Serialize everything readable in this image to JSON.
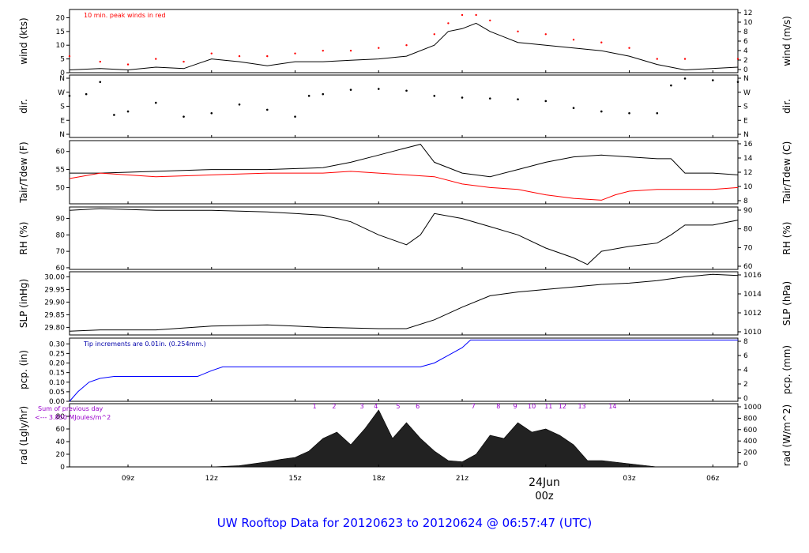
{
  "chart_data": {
    "type": "line",
    "title": "UW Rooftop Data for 20120623  to  20120624 @ 06:57:47  (UTC)",
    "x_axis": {
      "ticks": [
        "09z",
        "12z",
        "15z",
        "18z",
        "21z",
        "00z",
        "03z",
        "06z"
      ],
      "date_label": "24Jun",
      "date_tick": "00z"
    },
    "panels": [
      {
        "id": "wind",
        "ylabel_left": "wind (kts)",
        "ylabel_right": "wind (m/s)",
        "ylim": [
          0,
          23
        ],
        "left_ticks": [
          0,
          5,
          10,
          15,
          20
        ],
        "right_ticks": [
          0,
          2,
          4,
          6,
          8,
          10,
          12
        ],
        "note": "10 min. peak winds in red",
        "series": [
          {
            "x": [
              6.9,
              8,
              9,
              10,
              11,
              12,
              13,
              14,
              15,
              16,
              17,
              18,
              19,
              20,
              20.5,
              21,
              21.5,
              22,
              23,
              24,
              25,
              26,
              27,
              28,
              29,
              30.9
            ],
            "y": [
              1,
              1.5,
              1,
              2,
              1.5,
              5,
              4,
              2.5,
              4,
              4,
              4.5,
              5,
              6,
              10,
              15,
              16,
              18,
              15,
              11,
              10,
              9,
              8,
              6,
              3,
              1,
              2
            ]
          },
          {
            "x": [
              6.9,
              8,
              9,
              10,
              11,
              12,
              13,
              14,
              15,
              16,
              17,
              18,
              19,
              20,
              20.5,
              21,
              21.5,
              22,
              23,
              24,
              25,
              26,
              27,
              28,
              29,
              30.9
            ],
            "y": [
              6,
              4,
              3,
              5,
              4,
              7,
              6,
              6,
              7,
              8,
              8,
              9,
              10,
              14,
              18,
              21,
              21,
              19,
              15,
              14,
              12,
              11,
              9,
              5,
              5,
              5
            ]
          }
        ]
      },
      {
        "id": "dir",
        "ylabel_left": "dir.",
        "ylabel_right": "dir.",
        "ylim": [
          0,
          360
        ],
        "left_ticks": [
          "N",
          "E",
          "S",
          "W",
          "N"
        ],
        "right_ticks": [
          "N",
          "E",
          "S",
          "W",
          "N"
        ],
        "series": [
          {
            "x": [
              6.9,
              7.5,
              8,
              8.5,
              9,
              10,
              11,
              12,
              13,
              14,
              15,
              15.5,
              16,
              17,
              18,
              19,
              20,
              21,
              22,
              23,
              24,
              25,
              26,
              27,
              28,
              28.5,
              29,
              30,
              30.9
            ],
            "y": [
              240,
              250,
              320,
              130,
              150,
              200,
              120,
              140,
              190,
              160,
              120,
              240,
              250,
              275,
              280,
              270,
              240,
              230,
              225,
              220,
              210,
              170,
              150,
              140,
              140,
              300,
              340,
              330,
              320
            ]
          }
        ]
      },
      {
        "id": "temp",
        "ylabel_left": "Tair/Tdew (F)",
        "ylabel_right": "Tair/Tdew (C)",
        "ylim": [
          45.5,
          63
        ],
        "left_ticks": [
          50,
          55,
          60
        ],
        "right_ticks": [
          8,
          10,
          12,
          14,
          16
        ],
        "series": [
          {
            "name": "Tair",
            "x": [
              6.9,
              8,
              10,
              12,
              14,
              16,
              17,
              18,
              19,
              19.5,
              20,
              21,
              22,
              23,
              24,
              25,
              26,
              27,
              28,
              28.5,
              29,
              30,
              30.9
            ],
            "y": [
              54,
              54,
              54.5,
              55,
              55,
              55.5,
              57,
              59,
              61,
              62,
              57,
              54,
              53,
              55,
              57,
              58.5,
              59,
              58.5,
              58,
              58,
              54,
              54,
              53.5
            ]
          },
          {
            "name": "Tdew",
            "x": [
              6.9,
              8,
              10,
              12,
              14,
              16,
              17,
              18,
              19,
              20,
              21,
              22,
              23,
              24,
              25,
              26,
              26.5,
              27,
              28,
              29,
              30,
              30.9
            ],
            "y": [
              52.5,
              54,
              53,
              53.5,
              54,
              54,
              54.5,
              54,
              53.5,
              53,
              51,
              50,
              49.5,
              48,
              47,
              46.5,
              48,
              49,
              49.5,
              49.5,
              49.5,
              50
            ]
          }
        ]
      },
      {
        "id": "rh",
        "ylabel_left": "RH (%)",
        "ylabel_right": "RH (%)",
        "ylim": [
          59,
          97
        ],
        "left_ticks": [
          60,
          70,
          80,
          90
        ],
        "right_ticks": [
          60,
          70,
          80,
          90
        ],
        "series": [
          {
            "x": [
              6.9,
              8,
              10,
              12,
              14,
              16,
              17,
              18,
              19,
              19.5,
              20,
              21,
              22,
              23,
              24,
              25,
              25.5,
              26,
              27,
              28,
              28.5,
              29,
              30,
              30.9
            ],
            "y": [
              95,
              96,
              95,
              95,
              94,
              92,
              88,
              80,
              74,
              80,
              93,
              90,
              85,
              80,
              72,
              66,
              62,
              70,
              73,
              75,
              80,
              86,
              86,
              89
            ]
          }
        ]
      },
      {
        "id": "slp",
        "ylabel_left": "SLP (inHg)",
        "ylabel_right": "SLP (hPa)",
        "ylim": [
          29.77,
          30.02
        ],
        "left_ticks": [
          29.8,
          29.85,
          29.9,
          29.95,
          30.0
        ],
        "right_ticks": [
          1010,
          1012,
          1014,
          1016
        ],
        "series": [
          {
            "x": [
              6.9,
              8,
              10,
              12,
              14,
              16,
              18,
              19,
              20,
              21,
              22,
              23,
              24,
              25,
              26,
              27,
              28,
              29,
              30,
              30.9
            ],
            "y": [
              29.785,
              29.79,
              29.79,
              29.805,
              29.81,
              29.8,
              29.795,
              29.795,
              29.83,
              29.88,
              29.925,
              29.94,
              29.95,
              29.96,
              29.97,
              29.975,
              29.985,
              30.0,
              30.01,
              30.005
            ]
          }
        ]
      },
      {
        "id": "pcp",
        "ylabel_left": "pcp. (in)",
        "ylabel_right": "pcp. (mm)",
        "ylim": [
          0,
          0.33
        ],
        "left_ticks": [
          0.0,
          0.05,
          0.1,
          0.15,
          0.2,
          0.25,
          0.3
        ],
        "right_ticks": [
          0,
          2,
          4,
          6,
          8
        ],
        "note": "Tip increments are 0.01in. (0.254mm.)",
        "series": [
          {
            "x": [
              6.9,
              7.2,
              7.6,
              8,
              8.5,
              11.5,
              12,
              12.4,
              19.5,
              20,
              20.5,
              21,
              21.3,
              30.9
            ],
            "y": [
              0,
              0.05,
              0.1,
              0.12,
              0.13,
              0.13,
              0.16,
              0.18,
              0.18,
              0.2,
              0.24,
              0.28,
              0.32,
              0.32
            ]
          }
        ]
      },
      {
        "id": "rad",
        "ylabel_left": "rad (Lgly/hr)",
        "ylabel_right": "rad (W/m^2)",
        "ylim": [
          0,
          100
        ],
        "left_ticks": [
          0,
          20,
          40,
          60,
          80
        ],
        "right_ticks": [
          0,
          200,
          400,
          600,
          800,
          1000
        ],
        "note_1": "Sum of previous day",
        "note_2": "<--- 3.850 MJoules/m^2",
        "markers": [
          "1",
          "2",
          "3",
          "4",
          "5",
          "6",
          "7",
          "8",
          "9",
          "10",
          "11",
          "12",
          "13",
          "14"
        ],
        "series": [
          {
            "x": [
              12,
              13,
              14,
              14.5,
              15,
              15.5,
              16,
              16.5,
              17,
              17.5,
              18,
              18.5,
              19,
              19.5,
              20,
              20.5,
              21,
              21.5,
              22,
              22.5,
              23,
              23.5,
              24,
              24.5,
              25,
              25.5,
              26,
              27,
              28
            ],
            "y": [
              0,
              2,
              8,
              12,
              15,
              25,
              45,
              55,
              35,
              60,
              90,
              45,
              70,
              45,
              25,
              10,
              8,
              20,
              50,
              45,
              70,
              55,
              60,
              50,
              35,
              10,
              10,
              5,
              0
            ]
          }
        ]
      }
    ]
  }
}
